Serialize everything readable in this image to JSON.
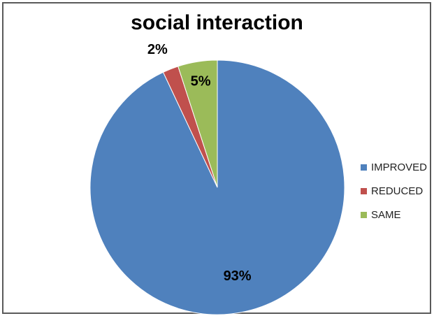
{
  "chart_data": {
    "type": "pie",
    "title": "social interaction",
    "categories": [
      "IMPROVED",
      "REDUCED",
      "SAME"
    ],
    "values": [
      93,
      2,
      5
    ],
    "data_labels": [
      "93%",
      "2%",
      "5%"
    ],
    "colors": [
      "#4F81BD",
      "#C0504D",
      "#9BBB59"
    ],
    "legend_position": "right",
    "start_angle": "top, clockwise"
  }
}
